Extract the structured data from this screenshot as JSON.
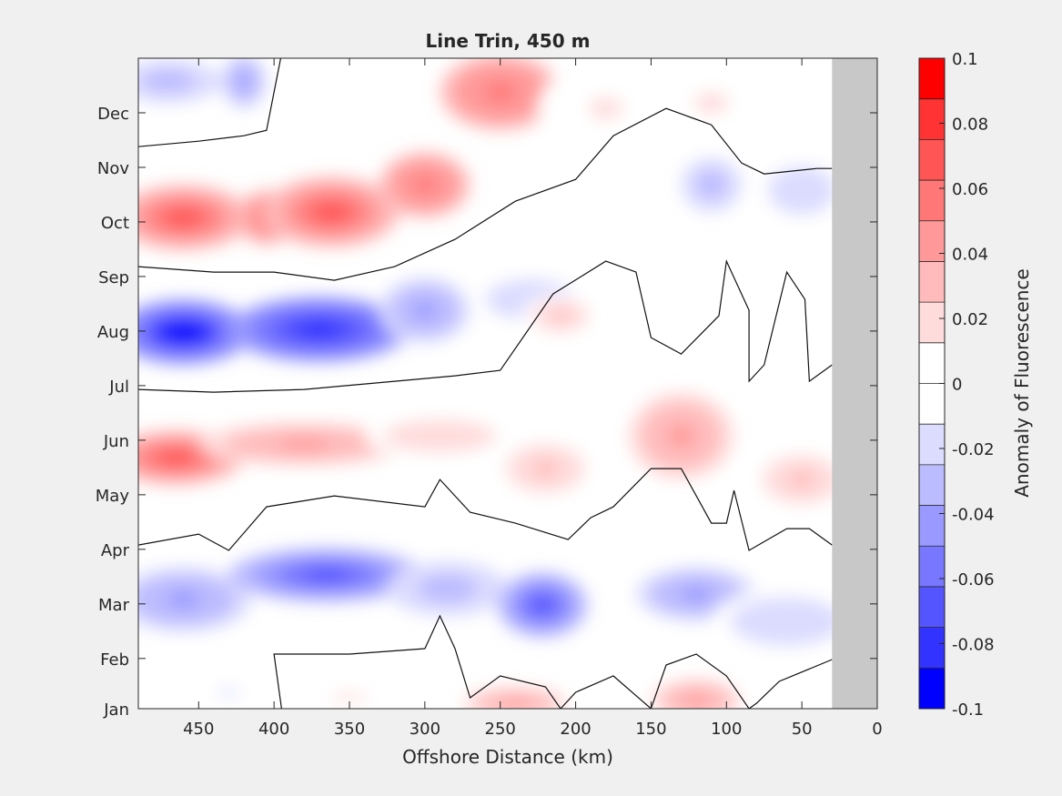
{
  "chart_data": {
    "type": "heatmap",
    "title": "Line Trin, 450 m",
    "xlabel": "Offshore Distance (km)",
    "ylabel": "",
    "colorbar_label": "Anomaly of Fluorescence",
    "xlim": [
      490,
      0
    ],
    "x_reversed": true,
    "x_ticks": [
      450,
      400,
      350,
      300,
      250,
      200,
      150,
      100,
      50,
      0
    ],
    "y_ticks": [
      "Jan",
      "Feb",
      "Mar",
      "Apr",
      "May",
      "Jun",
      "Jul",
      "Aug",
      "Sep",
      "Oct",
      "Nov",
      "Dec"
    ],
    "y_tick_month_positions": [
      1,
      1.92,
      2.92,
      3.92,
      4.92,
      5.92,
      6.92,
      7.92,
      8.92,
      9.92,
      10.92,
      11.92
    ],
    "ylim_months": [
      1,
      12.92
    ],
    "colorbar_ticks": [
      0.1,
      0.08,
      0.06,
      0.04,
      0.02,
      0,
      -0.02,
      -0.04,
      -0.06,
      -0.08,
      -0.1
    ],
    "colorbar_tick_labels": [
      "0.1",
      "0.08",
      "0.06",
      "0.04",
      "0.02",
      "0",
      "-0.02",
      "-0.04",
      "-0.06",
      "-0.08",
      "-0.1"
    ],
    "clim": [
      -0.1,
      0.1
    ],
    "no_data_region_km": [
      30,
      0
    ],
    "no_data_color": "#c8c8c8",
    "colormap": [
      "#0000ff",
      "#3333ff",
      "#5555ff",
      "#7777ff",
      "#9999ff",
      "#bbbbff",
      "#dcdcff",
      "#ffffff",
      "#ffffff",
      "#ffdcdc",
      "#ffbbbb",
      "#ff9999",
      "#ff7777",
      "#ff5555",
      "#ff3333",
      "#ff0000"
    ],
    "anomaly_features": [
      {
        "x": 460,
        "month": 10.0,
        "value": 0.075,
        "rx": 45,
        "ry": 0.6
      },
      {
        "x": 405,
        "month": 10.0,
        "value": 0.06,
        "rx": 20,
        "ry": 0.5
      },
      {
        "x": 362,
        "month": 10.1,
        "value": 0.075,
        "rx": 45,
        "ry": 0.65
      },
      {
        "x": 300,
        "month": 10.6,
        "value": 0.06,
        "rx": 30,
        "ry": 0.6
      },
      {
        "x": 250,
        "month": 12.3,
        "value": 0.06,
        "rx": 40,
        "ry": 0.7
      },
      {
        "x": 180,
        "month": 12.0,
        "value": 0.015,
        "rx": 45,
        "ry": 0.8
      },
      {
        "x": 110,
        "month": 12.1,
        "value": 0.015,
        "rx": 45,
        "ry": 0.8
      },
      {
        "x": 470,
        "month": 12.5,
        "value": -0.035,
        "rx": 35,
        "ry": 0.4
      },
      {
        "x": 420,
        "month": 12.5,
        "value": -0.04,
        "rx": 15,
        "ry": 0.5
      },
      {
        "x": 110,
        "month": 10.6,
        "value": -0.035,
        "rx": 20,
        "ry": 0.5
      },
      {
        "x": 50,
        "month": 10.5,
        "value": -0.02,
        "rx": 30,
        "ry": 0.6
      },
      {
        "x": 460,
        "month": 7.9,
        "value": -0.095,
        "rx": 45,
        "ry": 0.6
      },
      {
        "x": 370,
        "month": 7.95,
        "value": -0.085,
        "rx": 60,
        "ry": 0.6
      },
      {
        "x": 300,
        "month": 8.3,
        "value": -0.045,
        "rx": 30,
        "ry": 0.6
      },
      {
        "x": 230,
        "month": 8.5,
        "value": -0.02,
        "rx": 40,
        "ry": 0.5
      },
      {
        "x": 210,
        "month": 8.2,
        "value": 0.025,
        "rx": 25,
        "ry": 0.4
      },
      {
        "x": 60,
        "month": 7.9,
        "value": -0.01,
        "rx": 40,
        "ry": 0.5
      },
      {
        "x": 465,
        "month": 5.6,
        "value": 0.075,
        "rx": 45,
        "ry": 0.5
      },
      {
        "x": 380,
        "month": 5.85,
        "value": 0.045,
        "rx": 70,
        "ry": 0.4
      },
      {
        "x": 290,
        "month": 6.0,
        "value": 0.02,
        "rx": 50,
        "ry": 0.4
      },
      {
        "x": 220,
        "month": 5.4,
        "value": 0.025,
        "rx": 35,
        "ry": 0.6
      },
      {
        "x": 130,
        "month": 6.0,
        "value": 0.04,
        "rx": 35,
        "ry": 0.8
      },
      {
        "x": 50,
        "month": 5.2,
        "value": 0.025,
        "rx": 35,
        "ry": 0.6
      },
      {
        "x": 215,
        "month": 6.7,
        "value": 0.01,
        "rx": 60,
        "ry": 0.6
      },
      {
        "x": 460,
        "month": 3.0,
        "value": -0.045,
        "rx": 45,
        "ry": 0.6
      },
      {
        "x": 365,
        "month": 3.45,
        "value": -0.07,
        "rx": 65,
        "ry": 0.5
      },
      {
        "x": 285,
        "month": 3.2,
        "value": -0.035,
        "rx": 40,
        "ry": 0.5
      },
      {
        "x": 222,
        "month": 2.9,
        "value": -0.075,
        "rx": 30,
        "ry": 0.6
      },
      {
        "x": 120,
        "month": 3.1,
        "value": -0.045,
        "rx": 40,
        "ry": 0.5
      },
      {
        "x": 60,
        "month": 2.6,
        "value": -0.02,
        "rx": 50,
        "ry": 0.6
      },
      {
        "x": 240,
        "month": 1.1,
        "value": 0.04,
        "rx": 35,
        "ry": 0.3
      },
      {
        "x": 120,
        "month": 1.15,
        "value": 0.04,
        "rx": 30,
        "ry": 0.4
      },
      {
        "x": 350,
        "month": 1.2,
        "value": 0.015,
        "rx": 50,
        "ry": 0.3
      },
      {
        "x": 430,
        "month": 1.3,
        "value": -0.015,
        "rx": 30,
        "ry": 0.3
      }
    ],
    "zero_contours_km_month": [
      [
        [
          490,
          11.3
        ],
        [
          450,
          11.4
        ],
        [
          420,
          11.5
        ],
        [
          405,
          11.6
        ],
        [
          395,
          13
        ]
      ],
      [
        [
          490,
          9.1
        ],
        [
          440,
          9.0
        ],
        [
          400,
          9.0
        ],
        [
          360,
          8.85
        ],
        [
          320,
          9.1
        ],
        [
          280,
          9.6
        ],
        [
          240,
          10.3
        ],
        [
          200,
          10.7
        ],
        [
          175,
          11.5
        ],
        [
          140,
          12.0
        ],
        [
          110,
          11.7
        ],
        [
          90,
          11.0
        ],
        [
          75,
          10.8
        ],
        [
          40,
          10.9
        ],
        [
          30,
          10.9
        ]
      ],
      [
        [
          490,
          6.85
        ],
        [
          440,
          6.8
        ],
        [
          380,
          6.85
        ],
        [
          320,
          7.0
        ],
        [
          280,
          7.1
        ],
        [
          250,
          7.2
        ],
        [
          215,
          8.6
        ],
        [
          180,
          9.2
        ],
        [
          160,
          9.0
        ],
        [
          150,
          7.8
        ],
        [
          130,
          7.5
        ],
        [
          105,
          8.2
        ],
        [
          100,
          9.2
        ],
        [
          85,
          8.3
        ],
        [
          85,
          7.0
        ],
        [
          75,
          7.3
        ],
        [
          60,
          9.0
        ],
        [
          48,
          8.5
        ],
        [
          45,
          7.0
        ],
        [
          30,
          7.3
        ]
      ],
      [
        [
          490,
          4.0
        ],
        [
          450,
          4.2
        ],
        [
          430,
          3.9
        ],
        [
          405,
          4.7
        ],
        [
          360,
          4.9
        ],
        [
          300,
          4.7
        ],
        [
          290,
          5.2
        ],
        [
          270,
          4.6
        ],
        [
          240,
          4.4
        ],
        [
          205,
          4.1
        ],
        [
          190,
          4.5
        ],
        [
          175,
          4.7
        ],
        [
          150,
          5.4
        ],
        [
          130,
          5.4
        ],
        [
          110,
          4.4
        ],
        [
          100,
          4.4
        ],
        [
          95,
          5.0
        ],
        [
          85,
          3.9
        ],
        [
          60,
          4.3
        ],
        [
          45,
          4.3
        ],
        [
          30,
          4.0
        ]
      ],
      [
        [
          395,
          1.0
        ],
        [
          400,
          2.0
        ],
        [
          350,
          2.0
        ],
        [
          300,
          2.1
        ],
        [
          290,
          2.7
        ],
        [
          280,
          2.1
        ],
        [
          270,
          1.2
        ],
        [
          250,
          1.6
        ],
        [
          220,
          1.4
        ],
        [
          210,
          1.0
        ],
        [
          200,
          1.3
        ],
        [
          175,
          1.6
        ],
        [
          150,
          1.0
        ],
        [
          140,
          1.8
        ],
        [
          120,
          2.0
        ],
        [
          100,
          1.6
        ],
        [
          85,
          1.0
        ],
        [
          80,
          1.1
        ],
        [
          65,
          1.5
        ],
        [
          30,
          1.9
        ]
      ]
    ]
  }
}
